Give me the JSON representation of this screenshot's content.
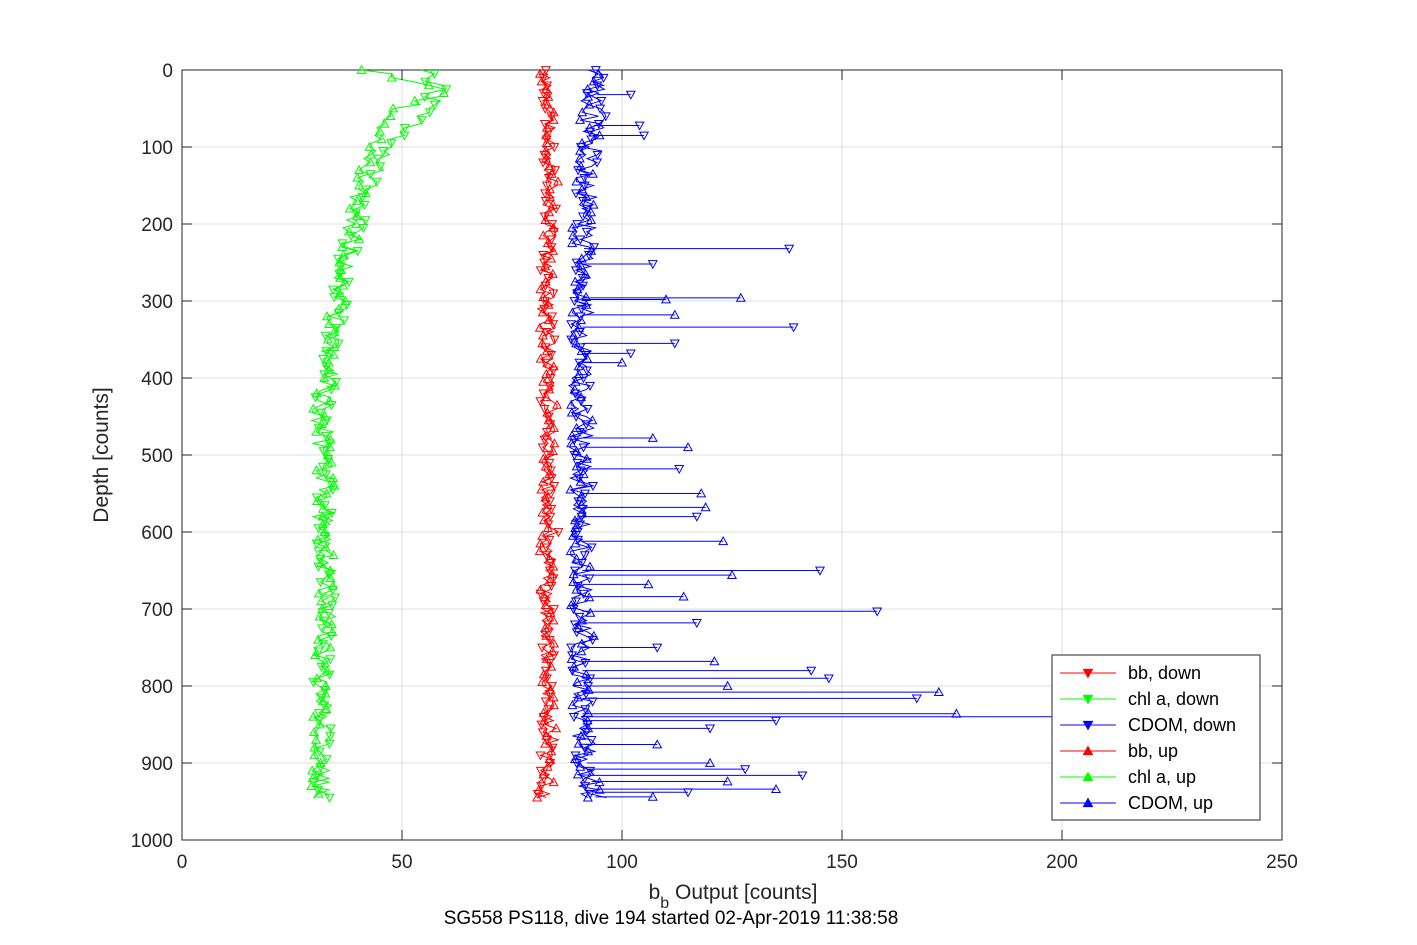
{
  "chart_data": {
    "type": "line",
    "title": "SG558 PS118, dive 194 started 02-Apr-2019 11:38:58",
    "xlabel_main": "b",
    "xlabel_sub": "b",
    "xlabel_rest": " Output [counts]",
    "ylabel": "Depth [counts]",
    "xlim": [
      0,
      250
    ],
    "ylim": [
      0,
      1000
    ],
    "y_reversed": true,
    "grid": true,
    "legend_position": "bottom-right",
    "xticks": [
      0,
      50,
      100,
      150,
      200,
      250
    ],
    "yticks": [
      0,
      100,
      200,
      300,
      400,
      500,
      600,
      700,
      800,
      900,
      1000
    ],
    "series": [
      {
        "name": "bb, down",
        "color": "#ff0000",
        "marker": "triangle-down",
        "depth": [
          0,
          50,
          100,
          150,
          200,
          250,
          300,
          350,
          400,
          450,
          500,
          550,
          600,
          650,
          700,
          750,
          800,
          850,
          900,
          945
        ],
        "values": [
          83,
          83,
          84,
          83,
          84,
          83,
          83,
          84,
          83,
          83,
          83,
          83,
          84,
          83,
          83,
          83,
          83,
          83,
          83,
          82
        ]
      },
      {
        "name": "chl a, down",
        "color": "#00ff00",
        "marker": "triangle-down",
        "depth": [
          0,
          25,
          50,
          100,
          150,
          200,
          250,
          300,
          350,
          400,
          450,
          500,
          550,
          600,
          650,
          700,
          750,
          800,
          850,
          900,
          945
        ],
        "values": [
          55,
          58,
          56,
          46,
          42,
          40,
          37,
          36,
          34,
          33,
          32,
          33,
          32,
          32,
          33,
          33,
          32,
          32,
          32,
          32,
          32
        ]
      },
      {
        "name": "CDOM, down",
        "color": "#0000ff",
        "marker": "triangle-down",
        "depth": [
          0,
          50,
          100,
          150,
          200,
          250,
          300,
          350,
          400,
          450,
          500,
          550,
          600,
          650,
          700,
          750,
          800,
          850,
          900,
          945
        ],
        "values": [
          95,
          94,
          93,
          92,
          92,
          91,
          91,
          91,
          91,
          91,
          91,
          91,
          91,
          91,
          91,
          91,
          91,
          91,
          92,
          94
        ]
      },
      {
        "name": "bb, up",
        "color": "#ff0000",
        "marker": "triangle-up",
        "depth": [
          0,
          50,
          100,
          150,
          200,
          250,
          300,
          350,
          400,
          450,
          500,
          550,
          600,
          650,
          700,
          750,
          800,
          850,
          900,
          945
        ],
        "values": [
          82,
          83,
          83,
          84,
          83,
          83,
          82,
          83,
          83,
          84,
          83,
          83,
          82,
          83,
          83,
          83,
          83,
          84,
          84,
          82
        ]
      },
      {
        "name": "chl a, up",
        "color": "#00ff00",
        "marker": "triangle-up",
        "depth": [
          0,
          25,
          50,
          100,
          150,
          200,
          250,
          300,
          350,
          400,
          450,
          500,
          550,
          600,
          650,
          700,
          750,
          800,
          850,
          900,
          945
        ],
        "values": [
          42,
          60,
          50,
          43,
          41,
          39,
          37,
          35,
          34,
          33,
          31,
          32,
          33,
          32,
          33,
          33,
          32,
          32,
          32,
          32,
          31
        ]
      },
      {
        "name": "CDOM, up",
        "color": "#0000ff",
        "marker": "triangle-up",
        "depth": [
          0,
          50,
          100,
          150,
          200,
          250,
          300,
          350,
          400,
          450,
          500,
          550,
          600,
          650,
          700,
          750,
          800,
          850,
          900,
          945
        ],
        "values": [
          94,
          93,
          92,
          92,
          91,
          91,
          90,
          90,
          90,
          91,
          90,
          90,
          90,
          91,
          91,
          91,
          91,
          91,
          92,
          93
        ]
      }
    ],
    "spikes": [
      {
        "depth": 32,
        "value": 102,
        "dir": "down"
      },
      {
        "depth": 72,
        "value": 104,
        "dir": "down"
      },
      {
        "depth": 85,
        "value": 105,
        "dir": "down"
      },
      {
        "depth": 232,
        "value": 138,
        "dir": "down"
      },
      {
        "depth": 252,
        "value": 107,
        "dir": "down"
      },
      {
        "depth": 296,
        "value": 127,
        "dir": "up"
      },
      {
        "depth": 298,
        "value": 110,
        "dir": "up"
      },
      {
        "depth": 318,
        "value": 112,
        "dir": "up"
      },
      {
        "depth": 334,
        "value": 139,
        "dir": "down"
      },
      {
        "depth": 355,
        "value": 112,
        "dir": "down"
      },
      {
        "depth": 368,
        "value": 102,
        "dir": "down"
      },
      {
        "depth": 380,
        "value": 100,
        "dir": "up"
      },
      {
        "depth": 478,
        "value": 107,
        "dir": "up"
      },
      {
        "depth": 490,
        "value": 115,
        "dir": "up"
      },
      {
        "depth": 518,
        "value": 113,
        "dir": "down"
      },
      {
        "depth": 550,
        "value": 118,
        "dir": "up"
      },
      {
        "depth": 568,
        "value": 119,
        "dir": "up"
      },
      {
        "depth": 580,
        "value": 117,
        "dir": "down"
      },
      {
        "depth": 612,
        "value": 123,
        "dir": "up"
      },
      {
        "depth": 650,
        "value": 145,
        "dir": "down"
      },
      {
        "depth": 656,
        "value": 125,
        "dir": "up"
      },
      {
        "depth": 668,
        "value": 106,
        "dir": "up"
      },
      {
        "depth": 684,
        "value": 114,
        "dir": "up"
      },
      {
        "depth": 703,
        "value": 158,
        "dir": "down"
      },
      {
        "depth": 718,
        "value": 117,
        "dir": "down"
      },
      {
        "depth": 750,
        "value": 108,
        "dir": "down"
      },
      {
        "depth": 768,
        "value": 121,
        "dir": "up"
      },
      {
        "depth": 780,
        "value": 143,
        "dir": "down"
      },
      {
        "depth": 790,
        "value": 147,
        "dir": "down"
      },
      {
        "depth": 800,
        "value": 124,
        "dir": "up"
      },
      {
        "depth": 808,
        "value": 172,
        "dir": "up"
      },
      {
        "depth": 816,
        "value": 167,
        "dir": "down"
      },
      {
        "depth": 836,
        "value": 176,
        "dir": "up"
      },
      {
        "depth": 840,
        "value": 215,
        "dir": "up"
      },
      {
        "depth": 845,
        "value": 135,
        "dir": "down"
      },
      {
        "depth": 855,
        "value": 120,
        "dir": "down"
      },
      {
        "depth": 876,
        "value": 108,
        "dir": "up"
      },
      {
        "depth": 900,
        "value": 120,
        "dir": "up"
      },
      {
        "depth": 908,
        "value": 128,
        "dir": "down"
      },
      {
        "depth": 916,
        "value": 141,
        "dir": "down"
      },
      {
        "depth": 924,
        "value": 124,
        "dir": "up"
      },
      {
        "depth": 934,
        "value": 135,
        "dir": "up"
      },
      {
        "depth": 938,
        "value": 115,
        "dir": "down"
      },
      {
        "depth": 944,
        "value": 107,
        "dir": "up"
      }
    ]
  }
}
